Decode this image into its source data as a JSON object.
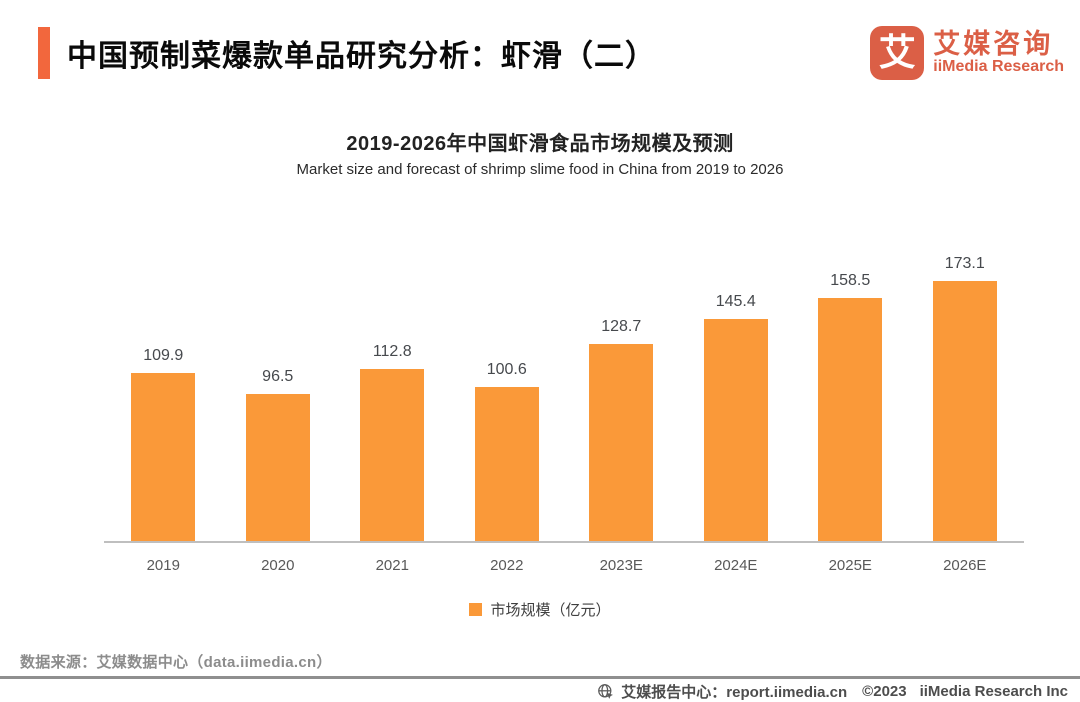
{
  "header": {
    "title": "中国预制菜爆款单品研究分析：虾滑（二）",
    "logo": {
      "mark": "艾",
      "name_cn": "艾媒咨询",
      "name_en": "iiMedia Research"
    }
  },
  "chart_data": {
    "type": "bar",
    "title": "2019-2026年中国虾滑食品市场规模及预测",
    "subtitle": "Market size and forecast of shrimp slime food in China from 2019 to 2026",
    "categories": [
      "2019",
      "2020",
      "2021",
      "2022",
      "2023E",
      "2024E",
      "2025E",
      "2026E"
    ],
    "values": [
      109.9,
      96.5,
      112.8,
      100.6,
      128.7,
      145.4,
      158.5,
      173.1
    ],
    "ylabel": "市场规模（亿元）",
    "ylim": [
      0,
      180
    ],
    "grid": false,
    "legend": [
      "市场规模（亿元）"
    ],
    "legend_position": "bottom",
    "bar_color": "#FA9939"
  },
  "footer": {
    "source": "数据来源：艾媒数据中心（data.iimedia.cn）",
    "report_center": "艾媒报告中心：report.iimedia.cn",
    "copyright": "©2023",
    "company": "iiMedia Research Inc"
  },
  "colors": {
    "accent": "#F2673D",
    "brand": "#DB5F46",
    "bar": "#FA9939",
    "axis": "#BFBFBF"
  }
}
